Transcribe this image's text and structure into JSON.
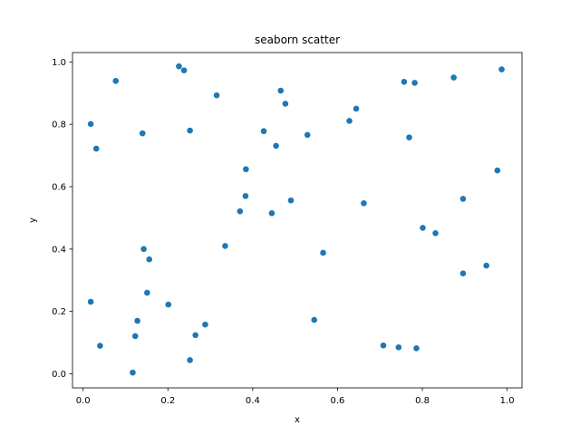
{
  "chart_data": {
    "type": "scatter",
    "title": "seaborn scatter",
    "xlabel": "x",
    "ylabel": "y",
    "xlim": [
      -0.025,
      1.035
    ],
    "ylim": [
      -0.045,
      1.03
    ],
    "xticks": [
      0.0,
      0.2,
      0.4,
      0.6,
      0.8,
      1.0
    ],
    "xtick_labels": [
      "0.0",
      "0.2",
      "0.4",
      "0.6",
      "0.8",
      "1.0"
    ],
    "yticks": [
      0.0,
      0.2,
      0.4,
      0.6,
      0.8,
      1.0
    ],
    "ytick_labels": [
      "0.0",
      "0.2",
      "0.4",
      "0.6",
      "0.8",
      "1.0"
    ],
    "grid": false,
    "legend": "none",
    "marker_color": "#1f77b4",
    "points": [
      {
        "x": 0.226,
        "y": 0.986
      },
      {
        "x": 0.238,
        "y": 0.973
      },
      {
        "x": 0.987,
        "y": 0.976
      },
      {
        "x": 0.077,
        "y": 0.939
      },
      {
        "x": 0.757,
        "y": 0.936
      },
      {
        "x": 0.782,
        "y": 0.933
      },
      {
        "x": 0.874,
        "y": 0.95
      },
      {
        "x": 0.466,
        "y": 0.908
      },
      {
        "x": 0.315,
        "y": 0.893
      },
      {
        "x": 0.477,
        "y": 0.866
      },
      {
        "x": 0.644,
        "y": 0.85
      },
      {
        "x": 0.628,
        "y": 0.811
      },
      {
        "x": 0.018,
        "y": 0.801
      },
      {
        "x": 0.252,
        "y": 0.78
      },
      {
        "x": 0.426,
        "y": 0.778
      },
      {
        "x": 0.14,
        "y": 0.771
      },
      {
        "x": 0.529,
        "y": 0.766
      },
      {
        "x": 0.769,
        "y": 0.758
      },
      {
        "x": 0.455,
        "y": 0.731
      },
      {
        "x": 0.031,
        "y": 0.722
      },
      {
        "x": 0.384,
        "y": 0.656
      },
      {
        "x": 0.977,
        "y": 0.652
      },
      {
        "x": 0.383,
        "y": 0.57
      },
      {
        "x": 0.896,
        "y": 0.561
      },
      {
        "x": 0.49,
        "y": 0.556
      },
      {
        "x": 0.662,
        "y": 0.547
      },
      {
        "x": 0.37,
        "y": 0.521
      },
      {
        "x": 0.445,
        "y": 0.515
      },
      {
        "x": 0.801,
        "y": 0.468
      },
      {
        "x": 0.831,
        "y": 0.451
      },
      {
        "x": 0.335,
        "y": 0.41
      },
      {
        "x": 0.143,
        "y": 0.4
      },
      {
        "x": 0.566,
        "y": 0.388
      },
      {
        "x": 0.156,
        "y": 0.367
      },
      {
        "x": 0.951,
        "y": 0.347
      },
      {
        "x": 0.896,
        "y": 0.322
      },
      {
        "x": 0.151,
        "y": 0.26
      },
      {
        "x": 0.018,
        "y": 0.231
      },
      {
        "x": 0.201,
        "y": 0.222
      },
      {
        "x": 0.545,
        "y": 0.173
      },
      {
        "x": 0.128,
        "y": 0.17
      },
      {
        "x": 0.288,
        "y": 0.158
      },
      {
        "x": 0.265,
        "y": 0.124
      },
      {
        "x": 0.123,
        "y": 0.121
      },
      {
        "x": 0.04,
        "y": 0.09
      },
      {
        "x": 0.708,
        "y": 0.091
      },
      {
        "x": 0.744,
        "y": 0.085
      },
      {
        "x": 0.786,
        "y": 0.082
      },
      {
        "x": 0.252,
        "y": 0.044
      },
      {
        "x": 0.117,
        "y": 0.004
      }
    ]
  }
}
